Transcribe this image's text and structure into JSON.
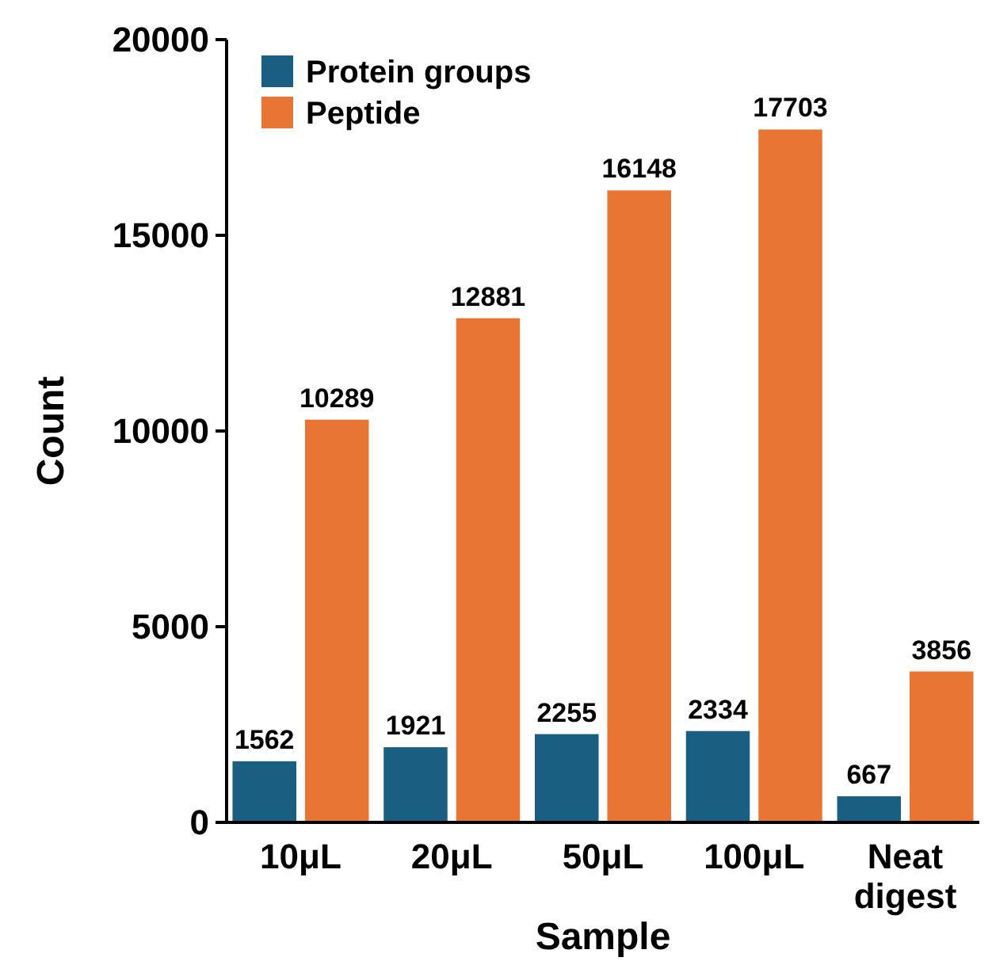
{
  "chart_data": {
    "type": "bar",
    "xlabel": "Sample",
    "ylabel": "Count",
    "categories": [
      "10μL",
      "20μL",
      "50μL",
      "100μL",
      "Neat digest"
    ],
    "series": [
      {
        "name": "Protein groups",
        "color": "#1a5f82",
        "values": [
          1562,
          1921,
          2255,
          2334,
          667
        ]
      },
      {
        "name": "Peptide",
        "color": "#e87534",
        "values": [
          10289,
          12881,
          16148,
          17703,
          3856
        ]
      }
    ],
    "ylim": [
      0,
      20000
    ],
    "yticks": [
      0,
      5000,
      10000,
      15000,
      20000
    ],
    "data_labels": true,
    "legend": "top left",
    "grid": false
  }
}
